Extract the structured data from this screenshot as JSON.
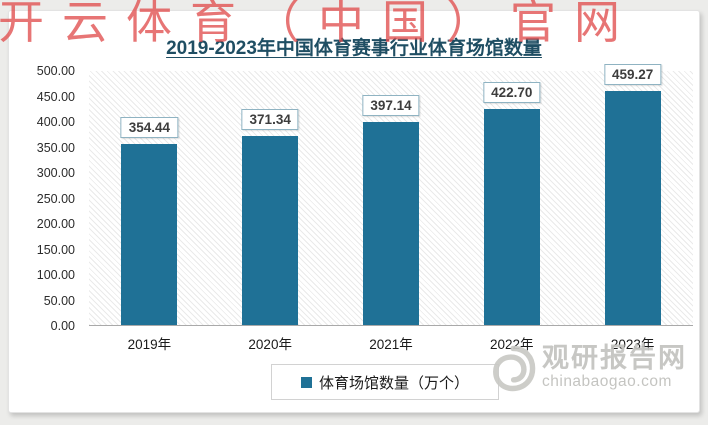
{
  "watermark": "开云体育（中国）官网",
  "title": "2019-2023年中国体育赛事行业体育场馆数量",
  "chart_data": {
    "type": "bar",
    "title": "2019-2023年中国体育赛事行业体育场馆数量",
    "categories": [
      "2019年",
      "2020年",
      "2021年",
      "2022年",
      "2023年"
    ],
    "values": [
      354.44,
      371.34,
      397.14,
      422.7,
      459.27
    ],
    "value_labels": [
      "354.44",
      "371.34",
      "397.14",
      "422.70",
      "459.27"
    ],
    "series_name": "体育场馆数量（万个）",
    "xlabel": "",
    "ylabel": "",
    "ylim": [
      0,
      500
    ],
    "y_tick_labels": [
      "500.00",
      "450.00",
      "400.00",
      "350.00",
      "300.00",
      "250.00",
      "200.00",
      "150.00",
      "100.00",
      "50.00",
      "0.00"
    ],
    "grid": false,
    "plot_background": "diagonal-hatch",
    "legend_position": "bottom",
    "bar_color": "#1F7196"
  },
  "legend": {
    "label": "体育场馆数量（万个）",
    "marker_color": "#1F7196"
  },
  "logo": {
    "name": "观研报告网",
    "domain": "chinabaogao.com"
  },
  "colors": {
    "bar": "#1F7196",
    "title": "#1F4E63",
    "watermark": "#E14F4F",
    "label_box_border": "#8FB3C2",
    "axis_line": "#a9a9a9"
  }
}
